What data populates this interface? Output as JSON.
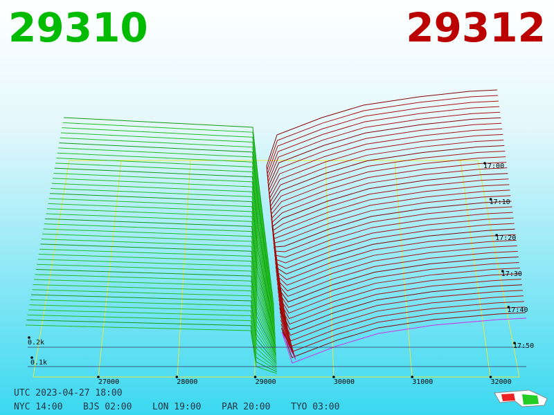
{
  "header": {
    "bid": "29310",
    "ask": "29312"
  },
  "price_axis": [
    "27000",
    "28000",
    "29000",
    "30000",
    "31000",
    "32000"
  ],
  "depth_axis": [
    "0.2k",
    "0.1k"
  ],
  "time_axis": [
    "17:00",
    "17:10",
    "17:20",
    "17:30",
    "17:40",
    "17:50"
  ],
  "clock": {
    "utc": "UTC 2023-04-27 18:00",
    "cities": [
      "NYC 14:00",
      "BJS 02:00",
      "LON 19:00",
      "PAR 20:00",
      "TYO 03:00"
    ]
  }
}
